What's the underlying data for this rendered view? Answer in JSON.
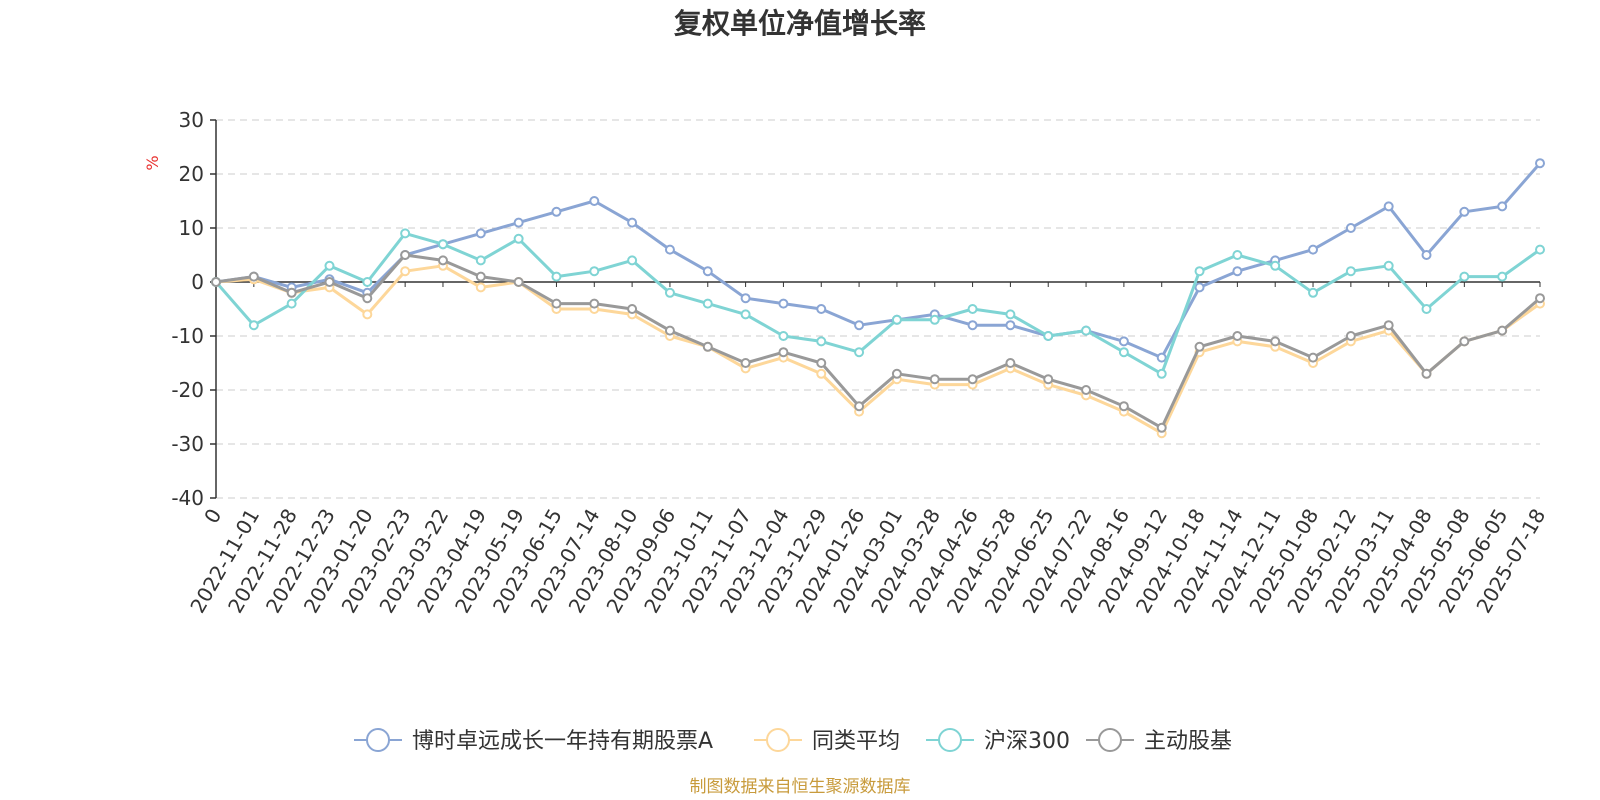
{
  "colors": {
    "fund": "#8aa5d4",
    "peer": "#fdd79a",
    "hs300": "#7fd4d4",
    "active": "#999999",
    "unit": "#e8312f",
    "source": "#c89b3c",
    "grid": "#cccccc",
    "axis": "#333333"
  },
  "chart_data": {
    "type": "line",
    "title": "复权单位净值增长率",
    "ylabel": "%",
    "ylim": [
      -40,
      30
    ],
    "yticks": [
      30,
      20,
      10,
      0,
      -10,
      -20,
      -30,
      -40
    ],
    "grid": true,
    "legend_position": "bottom",
    "x_labels": [
      "0",
      "2022-11-01",
      "2022-11-28",
      "2022-12-23",
      "2023-01-20",
      "2023-02-23",
      "2023-03-22",
      "2023-04-19",
      "2023-05-19",
      "2023-06-15",
      "2023-07-14",
      "2023-08-10",
      "2023-09-06",
      "2023-10-11",
      "2023-11-07",
      "2023-12-04",
      "2023-12-29",
      "2024-01-26",
      "2024-03-01",
      "2024-03-28",
      "2024-04-26",
      "2024-05-28",
      "2024-06-25",
      "2024-07-22",
      "2024-08-16",
      "2024-09-12",
      "2024-10-18",
      "2024-11-14",
      "2024-12-11",
      "2025-01-08",
      "2025-02-12",
      "2025-03-11",
      "2025-04-08",
      "2025-05-08",
      "2025-06-05",
      "2025-07-18"
    ],
    "series": [
      {
        "name": "博时卓远成长一年持有期股票A",
        "color": "#8aa5d4",
        "values": [
          0,
          1,
          -1,
          0.5,
          -2,
          5,
          7,
          9,
          11,
          13,
          15,
          11,
          6,
          2,
          -3,
          -4,
          -5,
          -8,
          -7,
          -6,
          -8,
          -8,
          -10,
          -9,
          -11,
          -14,
          -1,
          2,
          4,
          6,
          10,
          14,
          5,
          13,
          14,
          22
        ]
      },
      {
        "name": "同类平均",
        "color": "#fdd79a",
        "values": [
          0,
          0.5,
          -2,
          -1,
          -6,
          2,
          3,
          -1,
          0,
          -5,
          -5,
          -6,
          -10,
          -12,
          -16,
          -14,
          -17,
          -24,
          -18,
          -19,
          -19,
          -16,
          -19,
          -21,
          -24,
          -28,
          -13,
          -11,
          -12,
          -15,
          -11,
          -9,
          -17,
          -11,
          -9,
          -4
        ]
      },
      {
        "name": "沪深300",
        "color": "#7fd4d4",
        "values": [
          0,
          -8,
          -4,
          3,
          0,
          9,
          7,
          4,
          8,
          1,
          2,
          4,
          -2,
          -4,
          -6,
          -10,
          -11,
          -13,
          -7,
          -7,
          -5,
          -6,
          -10,
          -9,
          -13,
          -17,
          2,
          5,
          3,
          -2,
          2,
          3,
          -5,
          1,
          1,
          6
        ]
      },
      {
        "name": "主动股基",
        "color": "#999999",
        "values": [
          0,
          1,
          -2,
          0,
          -3,
          5,
          4,
          1,
          0,
          -4,
          -4,
          -5,
          -9,
          -12,
          -15,
          -13,
          -15,
          -23,
          -17,
          -18,
          -18,
          -15,
          -18,
          -20,
          -23,
          -27,
          -12,
          -10,
          -11,
          -14,
          -10,
          -8,
          -17,
          -11,
          -9,
          -3
        ]
      }
    ]
  },
  "source_note": "制图数据来自恒生聚源数据库"
}
